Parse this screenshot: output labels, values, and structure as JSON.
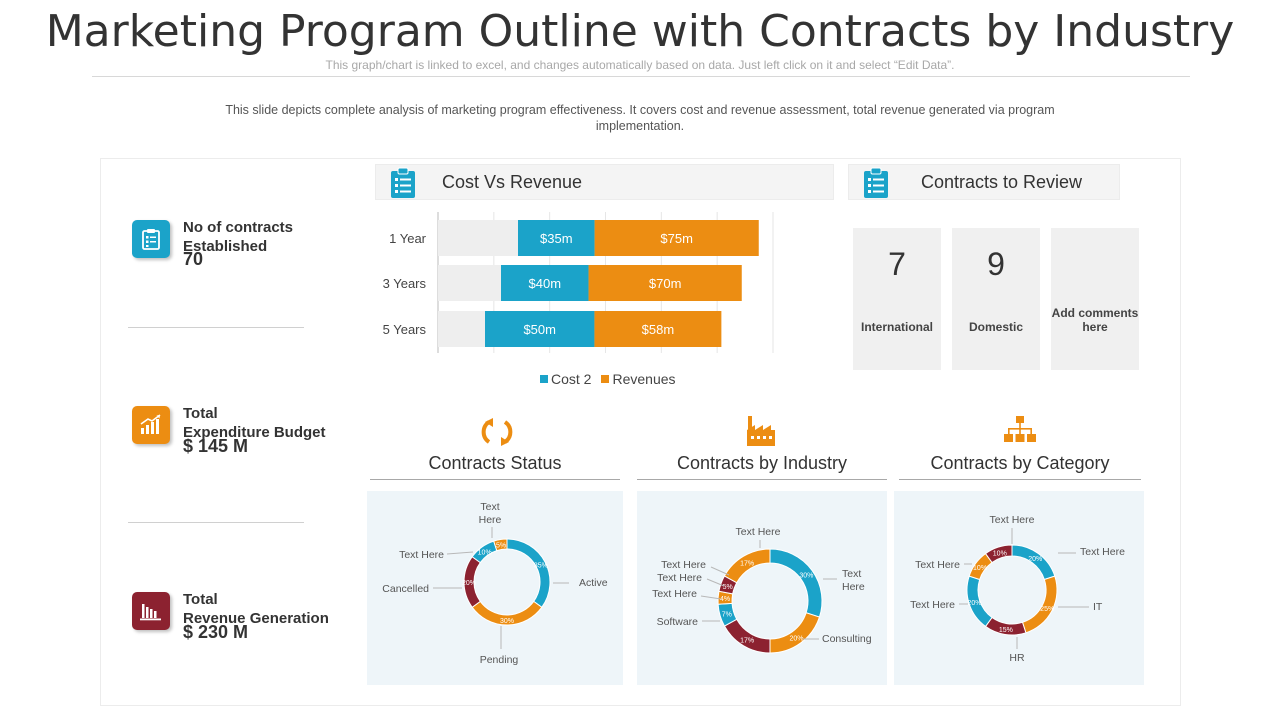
{
  "header": {
    "title": "Marketing Program Outline with Contracts by Industry",
    "subnote": "This graph/chart is linked to excel, and changes automatically based on data. Just left click on it and select “Edit Data”.",
    "description": "This slide depicts complete analysis of marketing program effectiveness.  It covers cost and revenue  assessment, total revenue  generated  via program  implementation."
  },
  "kpis": [
    {
      "label_line1": "No of contracts",
      "label_line2": "Established",
      "value": "70",
      "color": "#1ba3c9",
      "icon": "clipboard-checklist-icon"
    },
    {
      "label_line1": "Total",
      "label_line2": "Expenditure Budget",
      "value": "$ 145 M",
      "color": "#ec8d12",
      "icon": "bar-growth-icon"
    },
    {
      "label_line1": "Total",
      "label_line2": "Revenue Generation",
      "value": "$ 230 M",
      "color": "#8c2230",
      "icon": "revenue-bars-icon"
    }
  ],
  "sections": {
    "cost_vs_revenue": "Cost Vs Revenue",
    "contracts_to_review": "Contracts to Review",
    "contracts_status": "Contracts Status",
    "contracts_by_industry": "Contracts by Industry",
    "contracts_by_category": "Contracts by Category"
  },
  "review": [
    {
      "value": "7",
      "label": "International"
    },
    {
      "value": "9",
      "label": "Domestic"
    },
    {
      "value": "",
      "label": "Add comments here"
    }
  ],
  "colors": {
    "blue": "#1ba3c9",
    "orange": "#ec8d12",
    "maroon": "#8c2230",
    "bar_track": "#eeeeee"
  },
  "chart_data": [
    {
      "type": "bar",
      "orientation": "horizontal",
      "stacked": true,
      "categories": [
        "1 Year",
        "3 Years",
        "5 Years"
      ],
      "series": [
        {
          "name": "Cost 2",
          "values": [
            35,
            40,
            50
          ],
          "labels": [
            "$35m",
            "$40m",
            "$50m"
          ],
          "color": "#1ba3c9"
        },
        {
          "name": "Revenues",
          "values": [
            75,
            70,
            58
          ],
          "labels": [
            "$75m",
            "$70m",
            "$58m"
          ],
          "color": "#ec8d12"
        }
      ],
      "legend": "bottom"
    },
    {
      "type": "pie",
      "donut": true,
      "slices": [
        {
          "label": "Active",
          "value": 35,
          "pct": "35%",
          "color": "#1ba3c9"
        },
        {
          "label": "Pending",
          "value": 30,
          "pct": "30%",
          "color": "#ec8d12"
        },
        {
          "label": "Cancelled",
          "value": 20,
          "pct": "20%",
          "color": "#8c2230"
        },
        {
          "label": "Text Here",
          "value": 10,
          "pct": "10%",
          "color": "#1ba3c9"
        },
        {
          "label": "Text Here",
          "value": 5,
          "pct": "5%",
          "color": "#ec8d12"
        }
      ]
    },
    {
      "type": "pie",
      "donut": true,
      "slices": [
        {
          "label": "Text Here",
          "value": 30,
          "pct": "30%",
          "color": "#1ba3c9"
        },
        {
          "label": "Consulting",
          "value": 20,
          "pct": "20%",
          "color": "#ec8d12"
        },
        {
          "label": "",
          "value": 17,
          "pct": "17%",
          "color": "#8c2230"
        },
        {
          "label": "Software",
          "value": 7,
          "pct": "7%",
          "color": "#1ba3c9"
        },
        {
          "label": "Text Here",
          "value": 4,
          "pct": "4%",
          "color": "#ec8d12"
        },
        {
          "label": "Text Here",
          "value": 5,
          "pct": "5%",
          "color": "#8c2230"
        },
        {
          "label": "Text Here",
          "value": 17,
          "pct": "17%",
          "color": "#ec8d12"
        },
        {
          "label": "Text Here",
          "value": 0,
          "pct": "",
          "color": "#ec8d12"
        }
      ]
    },
    {
      "type": "pie",
      "donut": true,
      "slices": [
        {
          "label": "Text Here",
          "value": 20,
          "pct": "20%",
          "color": "#1ba3c9"
        },
        {
          "label": "IT",
          "value": 25,
          "pct": "25%",
          "color": "#ec8d12"
        },
        {
          "label": "HR",
          "value": 15,
          "pct": "15%",
          "color": "#8c2230"
        },
        {
          "label": "Text Here",
          "value": 20,
          "pct": "20%",
          "color": "#1ba3c9"
        },
        {
          "label": "Text Here",
          "value": 10,
          "pct": "10%",
          "color": "#ec8d12"
        },
        {
          "label": "Text Here",
          "value": 10,
          "pct": "10%",
          "color": "#8c2230"
        }
      ]
    }
  ]
}
